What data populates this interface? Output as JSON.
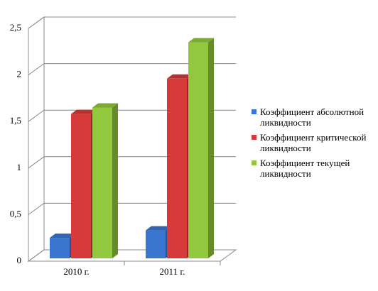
{
  "chart_data": {
    "type": "bar3d",
    "categories": [
      "2010 г.",
      "2011 г."
    ],
    "series": [
      {
        "name": "Коэффициент абсолютной ликвидности",
        "color": "#3a76d0",
        "values": [
          0.22,
          0.3
        ]
      },
      {
        "name": "Коэффициент критической ликвидности",
        "color": "#d63a3a",
        "values": [
          1.55,
          1.93
        ]
      },
      {
        "name": "Коэффициент текущей ликвидности",
        "color": "#92c83e",
        "values": [
          1.62,
          2.32
        ]
      }
    ],
    "ylim": [
      0,
      2.5
    ],
    "yticks": [
      0,
      {
        "value": 0.5,
        "label": "0,5"
      },
      1,
      {
        "value": 1.5,
        "label": "1,5"
      },
      2,
      {
        "value": 2.5,
        "label": "2,5"
      }
    ],
    "grid": true,
    "legend": "right"
  }
}
